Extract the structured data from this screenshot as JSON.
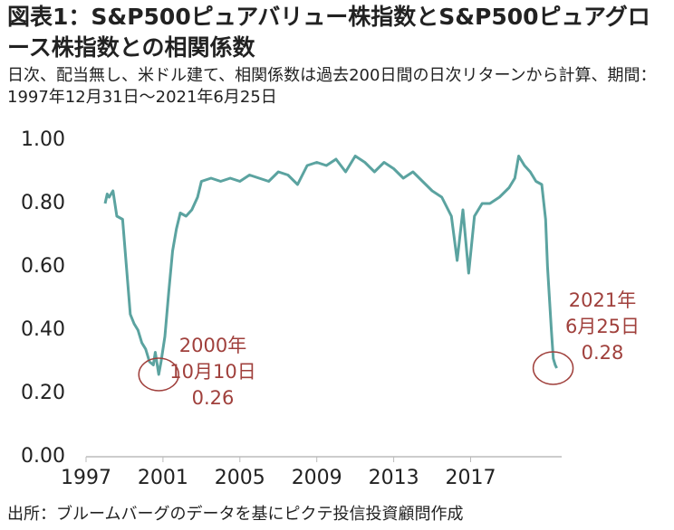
{
  "chart_data": {
    "type": "line",
    "title": "図表1：S&P500ピュアバリュー株指数とS&P500ピュアグロース株指数との相関係数",
    "subtitle": "日次、配当無し、米ドル建て、相関係数は過去200日間の日次リターンから計算、期間：1997年12月31日～2021年6月25日",
    "source": "出所：ブルームバーグのデータを基にピクテ投信投資顧問作成",
    "x": [
      1997.99,
      1998.1,
      1998.2,
      1998.4,
      1998.6,
      1998.9,
      1999.1,
      1999.3,
      1999.5,
      1999.7,
      1999.9,
      2000.1,
      2000.3,
      2000.5,
      2000.6,
      2000.78,
      2000.9,
      2001.1,
      2001.3,
      2001.5,
      2001.7,
      2001.9,
      2002.2,
      2002.5,
      2002.8,
      2003.0,
      2003.5,
      2004,
      2004.5,
      2005,
      2005.5,
      2006,
      2006.5,
      2007,
      2007.5,
      2008,
      2008.5,
      2009,
      2009.5,
      2010,
      2010.5,
      2011,
      2011.5,
      2012,
      2012.5,
      2013,
      2013.5,
      2014,
      2014.5,
      2015,
      2015.5,
      2016,
      2016.3,
      2016.6,
      2016.9,
      2017.2,
      2017.6,
      2018,
      2018.5,
      2019,
      2019.3,
      2019.5,
      2019.8,
      2020.1,
      2020.4,
      2020.7,
      2020.9,
      2021.0,
      2021.1,
      2021.2,
      2021.3,
      2021.4,
      2021.48
    ],
    "series": [
      {
        "name": "相関係数",
        "color": "#5ba3a0",
        "values": [
          0.8,
          0.83,
          0.82,
          0.84,
          0.76,
          0.75,
          0.6,
          0.45,
          0.42,
          0.4,
          0.36,
          0.34,
          0.3,
          0.29,
          0.33,
          0.26,
          0.3,
          0.38,
          0.52,
          0.65,
          0.72,
          0.77,
          0.76,
          0.78,
          0.82,
          0.87,
          0.88,
          0.87,
          0.88,
          0.87,
          0.89,
          0.88,
          0.87,
          0.9,
          0.89,
          0.86,
          0.92,
          0.93,
          0.92,
          0.94,
          0.9,
          0.95,
          0.93,
          0.9,
          0.93,
          0.91,
          0.88,
          0.9,
          0.87,
          0.84,
          0.82,
          0.76,
          0.62,
          0.78,
          0.58,
          0.76,
          0.8,
          0.8,
          0.82,
          0.85,
          0.88,
          0.95,
          0.92,
          0.9,
          0.87,
          0.86,
          0.75,
          0.6,
          0.5,
          0.4,
          0.31,
          0.29,
          0.28
        ]
      }
    ],
    "xlim": [
      1997,
      2021.5
    ],
    "xticks": [
      1997,
      2001,
      2005,
      2009,
      2013,
      2017
    ],
    "ylim": [
      0,
      1
    ],
    "yticks": [
      {
        "value": 0,
        "label": "0.00"
      },
      {
        "value": 0.2,
        "label": "0.20"
      },
      {
        "value": 0.4,
        "label": "0.40"
      },
      {
        "value": 0.6,
        "label": "0.60"
      },
      {
        "value": 0.8,
        "label": "0.80"
      },
      {
        "value": 1,
        "label": "1.00"
      }
    ],
    "annotations": [
      {
        "lines": [
          "2000年",
          "10月10日",
          "0.26"
        ],
        "color": "#a0403c"
      },
      {
        "lines": [
          "2021年",
          "6月25日",
          "0.28"
        ],
        "color": "#a0403c"
      }
    ]
  }
}
